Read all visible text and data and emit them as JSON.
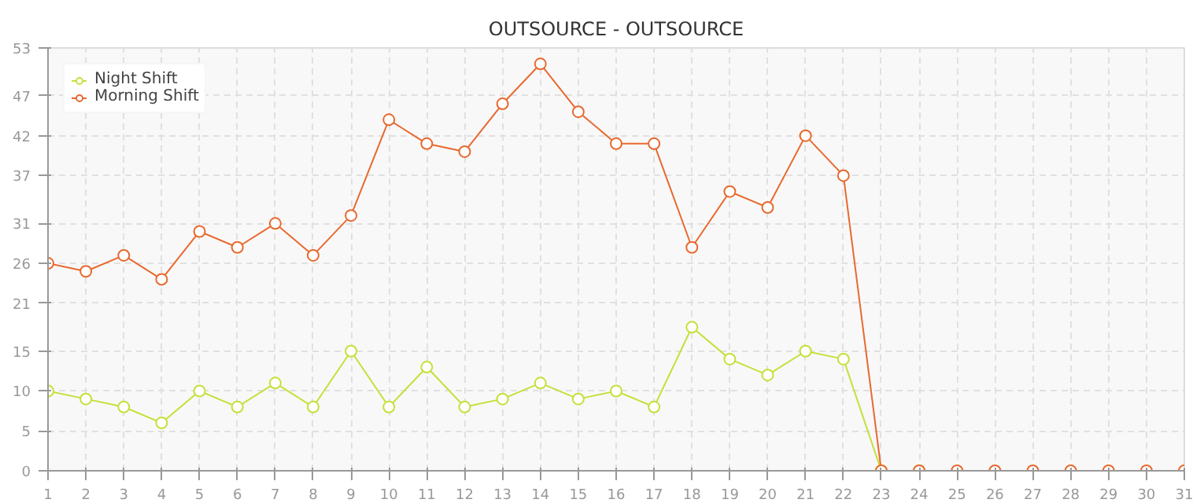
{
  "chart_data": {
    "type": "line",
    "title": "OUTSOURCE - OUTSOURCE",
    "x": [
      1,
      2,
      3,
      4,
      5,
      6,
      7,
      8,
      9,
      10,
      11,
      12,
      13,
      14,
      15,
      16,
      17,
      18,
      19,
      20,
      21,
      22,
      23,
      24,
      25,
      26,
      27,
      28,
      29,
      30,
      31
    ],
    "series": [
      {
        "name": "Night Shift",
        "color": "#c5e03a",
        "values": [
          10,
          9,
          8,
          6,
          10,
          8,
          11,
          8,
          15,
          8,
          13,
          8,
          9,
          11,
          9,
          10,
          8,
          18,
          14,
          12,
          15,
          14,
          0,
          0,
          null,
          null,
          null,
          null,
          null,
          null,
          null
        ]
      },
      {
        "name": "Morning Shift",
        "color": "#e8692f",
        "values": [
          26,
          25,
          27,
          24,
          30,
          28,
          31,
          27,
          32,
          44,
          41,
          40,
          46,
          51,
          45,
          41,
          41,
          28,
          35,
          33,
          42,
          37,
          0,
          0,
          0,
          0,
          0,
          0,
          0,
          0,
          0
        ]
      }
    ],
    "xlim": [
      1,
      31
    ],
    "xticks": [
      1,
      2,
      3,
      4,
      5,
      6,
      7,
      8,
      9,
      10,
      11,
      12,
      13,
      14,
      15,
      16,
      17,
      18,
      19,
      20,
      21,
      22,
      23,
      24,
      25,
      26,
      27,
      28,
      29,
      30,
      31
    ],
    "ylim": [
      0,
      53
    ],
    "yticks": [
      0,
      5,
      10,
      15,
      21,
      26,
      31,
      37,
      42,
      47,
      53
    ],
    "grid": true,
    "legend": "top left",
    "marker": "circle",
    "line_style": "solid"
  }
}
